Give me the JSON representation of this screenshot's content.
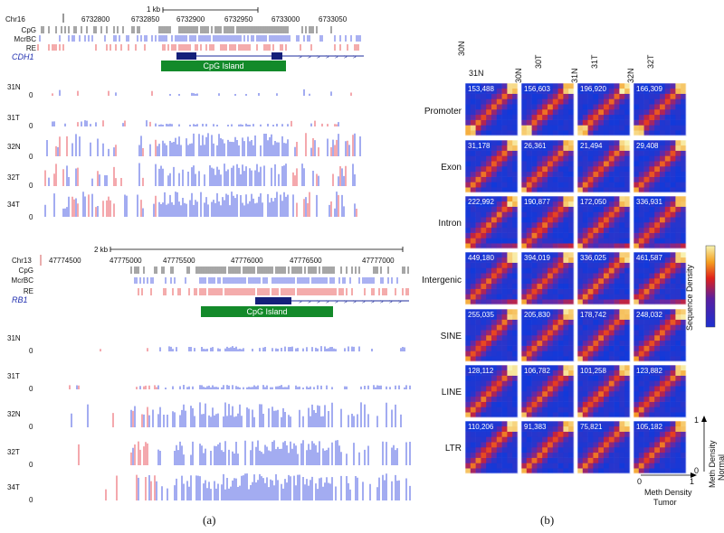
{
  "panel_a": {
    "top": {
      "chrom": "Chr16",
      "scale_label": "1 kb",
      "positions": [
        "6732800",
        "6732850",
        "6732900",
        "6732950",
        "6733000",
        "6733050"
      ],
      "position_labels": [
        "6732800",
        "6732850",
        "6732900",
        "6732950",
        "6733000",
        "6733050"
      ],
      "tracks": [
        "CpG",
        "McrBC",
        "RE"
      ],
      "gene": "CDH1",
      "cpg_island": "CpG Island",
      "samples": [
        "31N",
        "31T",
        "32N",
        "32T",
        "34T"
      ],
      "zero": "0"
    },
    "bottom": {
      "chrom": "Chr13",
      "scale_label": "2 kb",
      "position_labels": [
        "47774500",
        "47775000",
        "47775500",
        "47776000",
        "47776500",
        "47777000"
      ],
      "tracks": [
        "CpG",
        "McrBC",
        "RE"
      ],
      "gene": "RB1",
      "cpg_island": "CpG Island",
      "samples": [
        "31N",
        "31T",
        "32N",
        "32T",
        "34T"
      ],
      "zero": "0"
    },
    "caption": "(a)"
  },
  "panel_b": {
    "columns": [
      "30N 31N",
      "30N 30T",
      "31N 31T",
      "32N 32T"
    ],
    "column_top": [
      "31N",
      "30T",
      "31T",
      "32T"
    ],
    "column_side": [
      "30N",
      "30N",
      "31N",
      "32N"
    ],
    "rows": [
      {
        "label": "Promoter",
        "counts": [
          "153,488",
          "156,603",
          "196,920",
          "166,309"
        ]
      },
      {
        "label": "Exon",
        "counts": [
          "31,178",
          "26,361",
          "21,494",
          "29,408"
        ]
      },
      {
        "label": "Intron",
        "counts": [
          "222,992",
          "190,877",
          "172,050",
          "336,931"
        ]
      },
      {
        "label": "Intergenic",
        "counts": [
          "449,180",
          "394,019",
          "336,025",
          "461,587"
        ]
      },
      {
        "label": "SINE",
        "counts": [
          "255,035",
          "205,830",
          "178,742",
          "248,032"
        ]
      },
      {
        "label": "LINE",
        "counts": [
          "128,112",
          "106,782",
          "101,258",
          "123,882"
        ]
      },
      {
        "label": "LTR",
        "counts": [
          "110,206",
          "91,383",
          "75,821",
          "105,182"
        ]
      }
    ],
    "colorbar_label": "Sequence Density",
    "y_axis_label_1": "Meth Density",
    "y_axis_label_2": "Normal",
    "x_axis_label_1": "Meth Density",
    "x_axis_label_2": "Tumor",
    "axis_one": "1",
    "axis_zero": "0",
    "caption": "(b)",
    "colors": {
      "low": "#1f3bd6",
      "mid": "#e8271a",
      "high": "#f6f08a"
    }
  }
}
